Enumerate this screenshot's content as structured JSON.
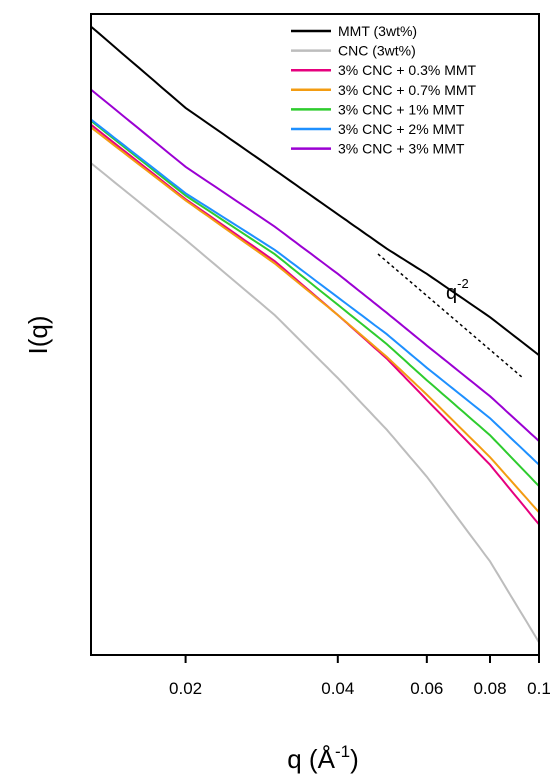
{
  "chart_data": {
    "type": "line",
    "xlabel": "q (Å",
    "xlabel_sup": "-1",
    "xlabel_close": ")",
    "ylabel": "I(q)",
    "xscale": "log",
    "yscale": "log",
    "xlim": [
      0.013,
      0.1
    ],
    "x_ticks": [
      {
        "value": 0.02,
        "label": "0.02"
      },
      {
        "value": 0.04,
        "label": "0.04"
      },
      {
        "value": 0.06,
        "label": "0.06"
      },
      {
        "value": 0.08,
        "label": "0.08"
      },
      {
        "value": 0.1,
        "label": "0.1"
      }
    ],
    "y_ticks": [],
    "legend_position": "top-right",
    "annotation": {
      "base": "q",
      "exponent": "-2",
      "slope": -2
    },
    "series": [
      {
        "name": "MMT (3wt%)",
        "color": "#000000",
        "x": [
          0.013,
          0.02,
          0.03,
          0.04,
          0.05,
          0.06,
          0.08,
          0.1
        ],
        "y": [
          1.0,
          0.409,
          0.207,
          0.127,
          0.087,
          0.066,
          0.041,
          0.027
        ]
      },
      {
        "name": "CNC (3wt%)",
        "color": "#bdbdbd",
        "x": [
          0.013,
          0.02,
          0.03,
          0.04,
          0.05,
          0.06,
          0.08,
          0.1
        ],
        "y": [
          0.223,
          0.096,
          0.042,
          0.021,
          0.0119,
          0.0071,
          0.0028,
          0.00115
        ]
      },
      {
        "name": "3% CNC + 0.3% MMT",
        "color": "#e6007e",
        "x": [
          0.013,
          0.02,
          0.03,
          0.04,
          0.05,
          0.06,
          0.08,
          0.1
        ],
        "y": [
          0.34,
          0.15,
          0.076,
          0.042,
          0.026,
          0.0165,
          0.0081,
          0.0042
        ]
      },
      {
        "name": "3% CNC + 0.7% MMT",
        "color": "#f39c12",
        "x": [
          0.013,
          0.02,
          0.03,
          0.04,
          0.05,
          0.06,
          0.08,
          0.1
        ],
        "y": [
          0.33,
          0.148,
          0.074,
          0.042,
          0.0265,
          0.0175,
          0.0088,
          0.0048
        ]
      },
      {
        "name": "3% CNC + 1% MMT",
        "color": "#2ecc2e",
        "x": [
          0.013,
          0.02,
          0.03,
          0.04,
          0.05,
          0.06,
          0.08,
          0.1
        ],
        "y": [
          0.355,
          0.156,
          0.082,
          0.047,
          0.0305,
          0.0205,
          0.0112,
          0.0064
        ]
      },
      {
        "name": "3% CNC + 2% MMT",
        "color": "#1e90ff",
        "x": [
          0.013,
          0.02,
          0.03,
          0.04,
          0.05,
          0.06,
          0.08,
          0.1
        ],
        "y": [
          0.36,
          0.16,
          0.086,
          0.051,
          0.034,
          0.0235,
          0.0135,
          0.0081
        ]
      },
      {
        "name": "3% CNC + 3% MMT",
        "color": "#9b00d3",
        "x": [
          0.013,
          0.02,
          0.03,
          0.04,
          0.05,
          0.06,
          0.08,
          0.1
        ],
        "y": [
          0.5,
          0.214,
          0.111,
          0.066,
          0.043,
          0.03,
          0.0172,
          0.0105
        ]
      }
    ]
  }
}
